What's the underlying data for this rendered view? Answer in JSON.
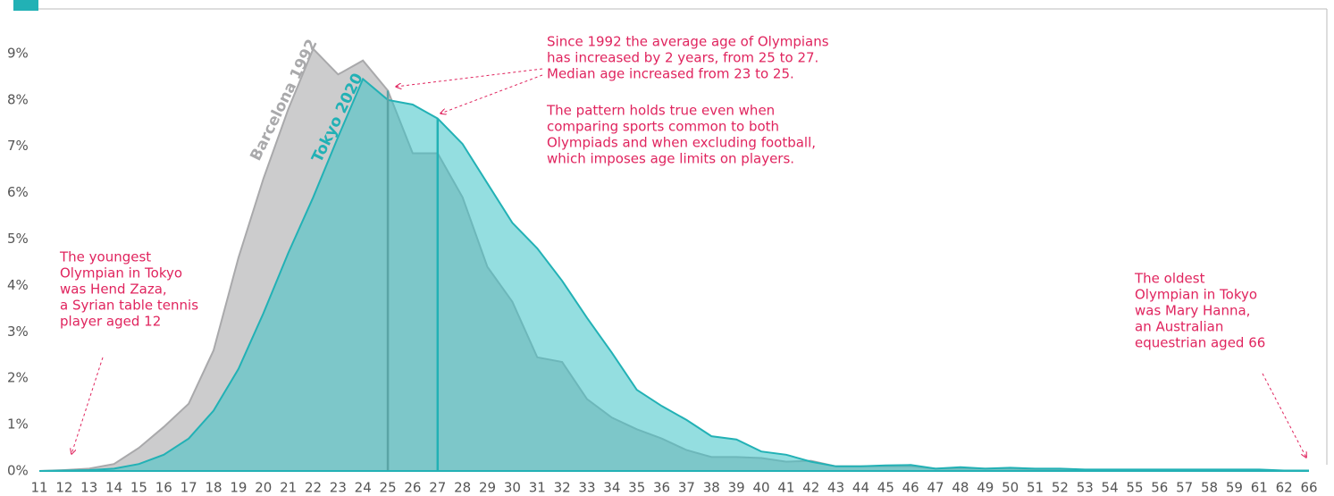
{
  "chart_data": {
    "type": "area",
    "categories": [
      11,
      12,
      13,
      14,
      15,
      16,
      17,
      18,
      19,
      20,
      21,
      22,
      23,
      24,
      25,
      26,
      27,
      28,
      29,
      30,
      31,
      32,
      33,
      34,
      35,
      36,
      37,
      38,
      39,
      40,
      41,
      42,
      43,
      44,
      45,
      46,
      47,
      48,
      49,
      50,
      51,
      52,
      53,
      54,
      55,
      56,
      57,
      58,
      59,
      61,
      62,
      66
    ],
    "series": [
      {
        "name": "Barcelona 1992",
        "color": "#c6c6c8",
        "stroke": "#a9a9ab",
        "values": [
          0,
          0.02,
          0.05,
          0.15,
          0.5,
          0.95,
          1.45,
          2.6,
          4.6,
          6.3,
          7.8,
          9.1,
          8.55,
          8.85,
          8.2,
          6.85,
          6.85,
          5.9,
          4.4,
          3.65,
          2.45,
          2.35,
          1.55,
          1.15,
          0.9,
          0.7,
          0.45,
          0.3,
          0.3,
          0.28,
          0.2,
          0.22,
          0.1,
          0.1,
          0.1,
          0.1,
          0.05,
          0.05,
          0.05,
          0.05,
          0.03,
          0.03,
          0.02,
          0.02,
          0.02,
          0.02,
          0.02,
          0.02,
          0.02,
          0.01,
          0,
          0
        ]
      },
      {
        "name": "Tokyo 2020",
        "color": "#3cc3c6",
        "stroke": "#22b1b5",
        "values": [
          0,
          0.01,
          0.02,
          0.05,
          0.15,
          0.35,
          0.7,
          1.3,
          2.2,
          3.4,
          4.7,
          5.9,
          7.2,
          8.45,
          8.0,
          7.9,
          7.6,
          7.05,
          6.2,
          5.35,
          4.8,
          4.1,
          3.3,
          2.55,
          1.75,
          1.4,
          1.1,
          0.75,
          0.68,
          0.42,
          0.35,
          0.2,
          0.1,
          0.1,
          0.12,
          0.13,
          0.05,
          0.08,
          0.05,
          0.07,
          0.05,
          0.05,
          0.03,
          0.03,
          0.03,
          0.03,
          0.03,
          0.03,
          0.03,
          0.03,
          0.01,
          0.01
        ]
      }
    ],
    "median_lines": [
      {
        "value": 25,
        "color": "#5aa4a6"
      },
      {
        "value": 27,
        "color": "#22b1b5"
      }
    ],
    "ylim": [
      0,
      9.3
    ],
    "yticks": [
      {
        "value": 0,
        "label": "0%"
      },
      {
        "value": 1,
        "label": "1%"
      },
      {
        "value": 2,
        "label": "2%"
      },
      {
        "value": 3,
        "label": "3%"
      },
      {
        "value": 4,
        "label": "4%"
      },
      {
        "value": 5,
        "label": "5%"
      },
      {
        "value": 6,
        "label": "6%"
      },
      {
        "value": 7,
        "label": "7%"
      },
      {
        "value": 8,
        "label": "8%"
      },
      {
        "value": 9,
        "label": "9%"
      }
    ],
    "annotations": [
      {
        "lines": [
          "Since 1992 the average age of Olympians",
          "has increased by 2 years, from 25 to 27.",
          "Median age increased from 23 to 25."
        ]
      },
      {
        "lines": [
          "The pattern holds true even when",
          "comparing sports common to both",
          "Olympiads and when excluding football,",
          "which imposes age limits on players."
        ]
      },
      {
        "lines": [
          "The youngest",
          "Olympian in Tokyo",
          "was Hend Zaza,",
          "a Syrian table tennis",
          "player aged 12"
        ]
      },
      {
        "lines": [
          "The oldest",
          "Olympian in Tokyo",
          "was Mary Hanna,",
          "an Australian",
          "equestrian aged 66"
        ]
      }
    ]
  }
}
